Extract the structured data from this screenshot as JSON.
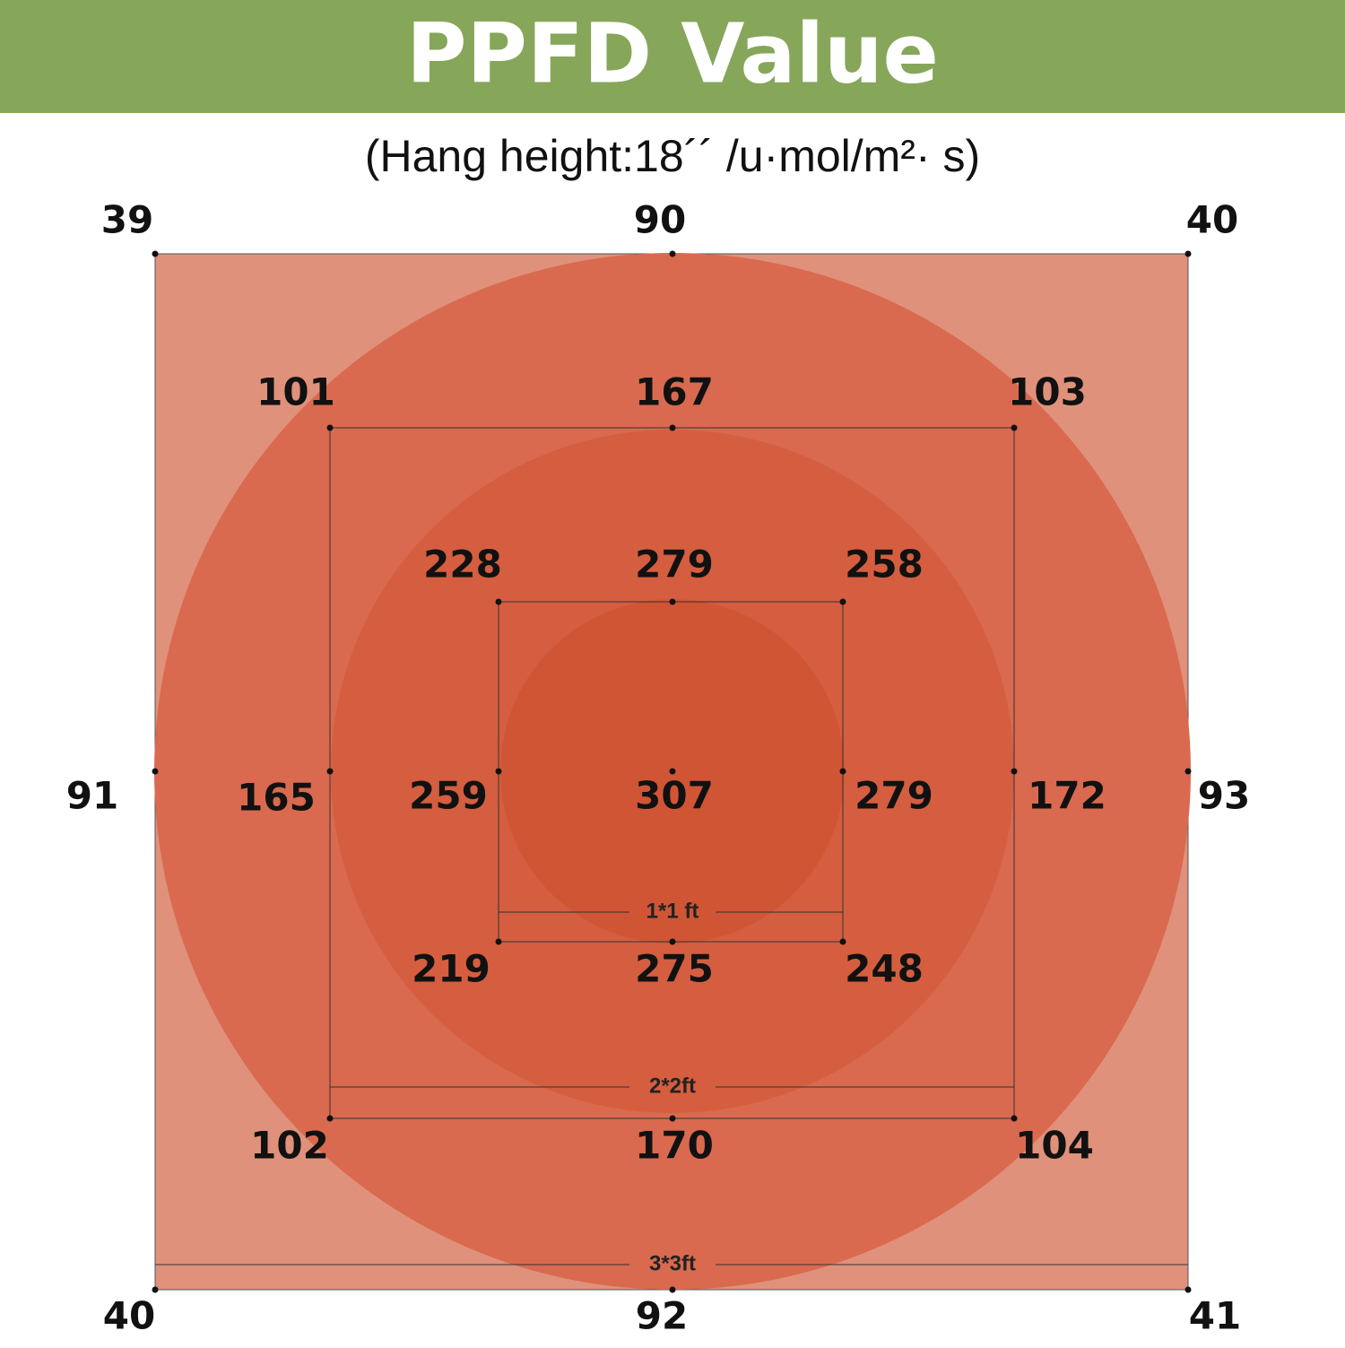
{
  "header": {
    "title": "PPFD Value"
  },
  "subtitle": "(Hang height:18´´ /u·mol/m²· s)",
  "squares": [
    {
      "label": "3*3ft",
      "readings": [
        39,
        90,
        40,
        91,
        93,
        40,
        92,
        41
      ]
    },
    {
      "label": "2*2ft",
      "readings": [
        101,
        167,
        103,
        165,
        172,
        102,
        170,
        104
      ]
    },
    {
      "label": "1*1 ft",
      "readings": [
        228,
        279,
        258,
        259,
        279,
        219,
        275,
        248
      ]
    }
  ],
  "center": 307
}
